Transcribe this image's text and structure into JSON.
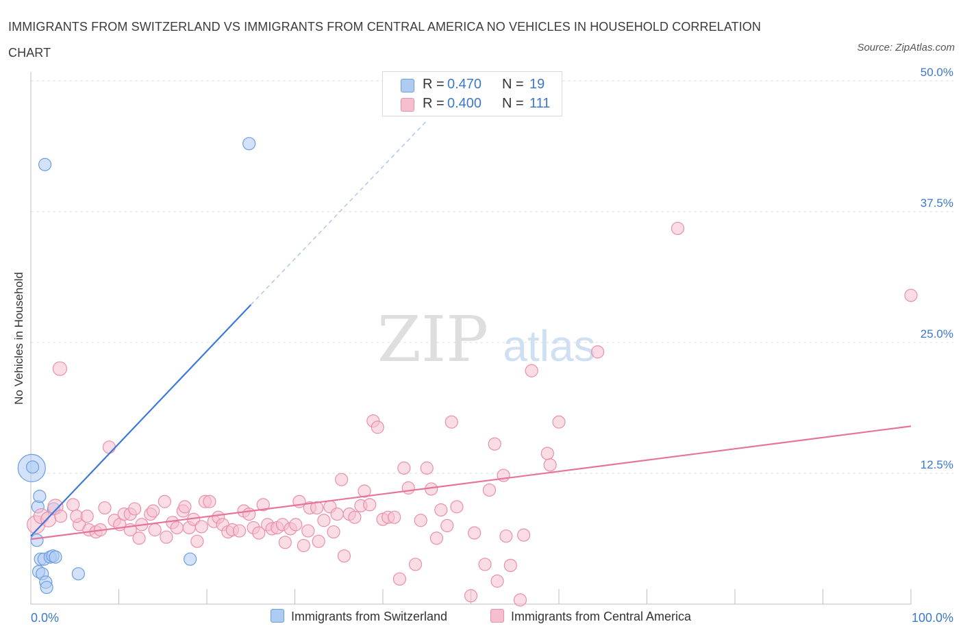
{
  "header": {
    "title": "IMMIGRANTS FROM SWITZERLAND VS IMMIGRANTS FROM CENTRAL AMERICA NO VEHICLES IN HOUSEHOLD CORRELATION CHART",
    "source": "Source: ZipAtlas.com"
  },
  "watermark": {
    "zip": "ZIP",
    "atlas": "atlas"
  },
  "legend": {
    "r_label": "R =",
    "n_label": "N =",
    "series": [
      {
        "r": "0.470",
        "n": "19",
        "color": "#aecbf2",
        "edge": "#6a9ee0"
      },
      {
        "r": "0.400",
        "n": "111",
        "color": "#f6bfcf",
        "edge": "#ea8fab"
      }
    ]
  },
  "bottom_legend": {
    "switzerland": "Immigrants from Switzerland",
    "central_america": "Immigrants from Central America"
  },
  "chart_data": {
    "type": "scatter",
    "title": "IMMIGRANTS FROM SWITZERLAND VS IMMIGRANTS FROM CENTRAL AMERICA NO VEHICLES IN HOUSEHOLD CORRELATION CHART",
    "xlabel": "",
    "ylabel": "No Vehicles in Household",
    "xlim": [
      0,
      100
    ],
    "ylim": [
      0,
      50
    ],
    "x_tick_labels": [
      "0.0%",
      "100.0%"
    ],
    "y_ticks": [
      12.5,
      25.0,
      37.5,
      50.0
    ],
    "y_tick_labels": [
      "12.5%",
      "25.0%",
      "37.5%",
      "50.0%"
    ],
    "grid": true,
    "colors": {
      "switzerland": "#3b78d8",
      "central_america": "#e8739a",
      "tick_label": "#3b78c9"
    },
    "series": [
      {
        "name": "Immigrants from Switzerland",
        "color": "#aecbf2",
        "edge": "#6a9ee0",
        "trend": {
          "x": [
            0,
            25
          ],
          "y": [
            6.5,
            28.6
          ],
          "dashed_to": [
            45,
            46.2
          ]
        },
        "points": [
          [
            0.1,
            13.0,
            20
          ],
          [
            0.2,
            13.1,
            9
          ],
          [
            0.8,
            9.3,
            9
          ],
          [
            1.0,
            10.3,
            9
          ],
          [
            0.7,
            6.1,
            9
          ],
          [
            1.6,
            42.0,
            9
          ],
          [
            24.8,
            44.0,
            9
          ],
          [
            2.6,
            9.1,
            9
          ],
          [
            1.1,
            4.3,
            9
          ],
          [
            1.5,
            4.3,
            9
          ],
          [
            2.2,
            4.5,
            9
          ],
          [
            2.5,
            4.6,
            9
          ],
          [
            2.8,
            4.5,
            9
          ],
          [
            0.9,
            3.1,
            9
          ],
          [
            1.3,
            2.9,
            9
          ],
          [
            1.7,
            2.1,
            9
          ],
          [
            1.8,
            1.6,
            9
          ],
          [
            5.4,
            2.9,
            9
          ],
          [
            18.1,
            4.3,
            9
          ]
        ]
      },
      {
        "name": "Immigrants from Central America",
        "color": "#f6bfcf",
        "edge": "#ea8fab",
        "trend": {
          "x": [
            0,
            100
          ],
          "y": [
            6.2,
            17.0
          ]
        },
        "points": [
          [
            0.6,
            7.6,
            13
          ],
          [
            1.2,
            8.4,
            11
          ],
          [
            2.0,
            8.1,
            11
          ],
          [
            2.8,
            9.3,
            11
          ],
          [
            3.4,
            8.4,
            9
          ],
          [
            3.3,
            22.5,
            10
          ],
          [
            4.8,
            9.5,
            9
          ],
          [
            5.5,
            7.6,
            9
          ],
          [
            5.2,
            8.4,
            9
          ],
          [
            6.4,
            8.4,
            9
          ],
          [
            6.6,
            7.1,
            9
          ],
          [
            7.4,
            6.9,
            9
          ],
          [
            7.9,
            7.1,
            9
          ],
          [
            8.4,
            9.2,
            9
          ],
          [
            8.9,
            15.0,
            9
          ],
          [
            9.5,
            8.0,
            9
          ],
          [
            10.1,
            7.6,
            9
          ],
          [
            10.6,
            8.6,
            9
          ],
          [
            11.3,
            8.6,
            9
          ],
          [
            11.8,
            9.1,
            9
          ],
          [
            11.3,
            7.1,
            9
          ],
          [
            12.6,
            7.6,
            9
          ],
          [
            12.3,
            6.3,
            9
          ],
          [
            13.6,
            8.6,
            9
          ],
          [
            13.9,
            8.9,
            9
          ],
          [
            14.1,
            7.1,
            9
          ],
          [
            15.2,
            9.8,
            9
          ],
          [
            15.4,
            6.4,
            9
          ],
          [
            16.1,
            7.8,
            9
          ],
          [
            16.6,
            7.3,
            9
          ],
          [
            17.3,
            8.9,
            9
          ],
          [
            17.5,
            9.3,
            9
          ],
          [
            18.0,
            7.3,
            9
          ],
          [
            18.5,
            8.1,
            9
          ],
          [
            18.9,
            6.0,
            9
          ],
          [
            19.4,
            7.4,
            9
          ],
          [
            19.8,
            9.8,
            9
          ],
          [
            20.3,
            9.8,
            9
          ],
          [
            20.8,
            7.9,
            9
          ],
          [
            21.3,
            8.3,
            9
          ],
          [
            21.8,
            7.6,
            9
          ],
          [
            22.4,
            6.9,
            9
          ],
          [
            22.9,
            7.1,
            9
          ],
          [
            23.7,
            7.0,
            9
          ],
          [
            24.2,
            8.9,
            9
          ],
          [
            24.8,
            8.6,
            9
          ],
          [
            25.3,
            7.3,
            9
          ],
          [
            25.9,
            6.8,
            9
          ],
          [
            26.4,
            9.5,
            9
          ],
          [
            26.9,
            7.6,
            9
          ],
          [
            27.4,
            7.2,
            9
          ],
          [
            28.0,
            7.3,
            9
          ],
          [
            28.6,
            7.6,
            9
          ],
          [
            28.9,
            5.9,
            9
          ],
          [
            29.5,
            7.2,
            9
          ],
          [
            30.1,
            7.6,
            9
          ],
          [
            30.5,
            9.8,
            9
          ],
          [
            31.0,
            5.6,
            9
          ],
          [
            31.5,
            7.0,
            9
          ],
          [
            31.7,
            9.2,
            9
          ],
          [
            32.5,
            9.2,
            9
          ],
          [
            32.7,
            6.0,
            9
          ],
          [
            33.3,
            8.0,
            9
          ],
          [
            34.0,
            9.3,
            9
          ],
          [
            34.4,
            6.9,
            9
          ],
          [
            34.8,
            8.6,
            9
          ],
          [
            35.3,
            11.9,
            9
          ],
          [
            35.6,
            4.6,
            9
          ],
          [
            36.2,
            8.6,
            9
          ],
          [
            36.8,
            8.3,
            9
          ],
          [
            37.5,
            9.4,
            9
          ],
          [
            37.9,
            10.8,
            9
          ],
          [
            38.5,
            9.5,
            9
          ],
          [
            38.9,
            17.5,
            9
          ],
          [
            39.4,
            16.9,
            9
          ],
          [
            40.0,
            8.1,
            9
          ],
          [
            40.6,
            8.3,
            9
          ],
          [
            41.3,
            8.3,
            9
          ],
          [
            41.9,
            2.4,
            9
          ],
          [
            42.4,
            13.0,
            9
          ],
          [
            42.9,
            11.1,
            9
          ],
          [
            43.7,
            3.8,
            9
          ],
          [
            44.3,
            8.0,
            9
          ],
          [
            45.0,
            13.0,
            9
          ],
          [
            45.5,
            11.0,
            9
          ],
          [
            46.1,
            6.3,
            9
          ],
          [
            46.6,
            9.0,
            9
          ],
          [
            47.3,
            7.5,
            9
          ],
          [
            47.8,
            17.4,
            9
          ],
          [
            48.4,
            9.3,
            9
          ],
          [
            50.0,
            0.8,
            9
          ],
          [
            50.4,
            6.8,
            9
          ],
          [
            51.6,
            3.8,
            9
          ],
          [
            52.1,
            10.9,
            9
          ],
          [
            52.7,
            15.3,
            9
          ],
          [
            53.0,
            2.2,
            9
          ],
          [
            53.7,
            12.3,
            9
          ],
          [
            54.0,
            6.5,
            9
          ],
          [
            54.5,
            3.7,
            9
          ],
          [
            55.6,
            0.4,
            9
          ],
          [
            56.0,
            6.6,
            9
          ],
          [
            56.9,
            22.3,
            9
          ],
          [
            58.7,
            14.4,
            9
          ],
          [
            59.0,
            13.3,
            9
          ],
          [
            60.0,
            17.4,
            9
          ],
          [
            64.4,
            24.1,
            9
          ],
          [
            73.5,
            35.9,
            9
          ],
          [
            100.0,
            29.5,
            9
          ]
        ]
      }
    ]
  }
}
